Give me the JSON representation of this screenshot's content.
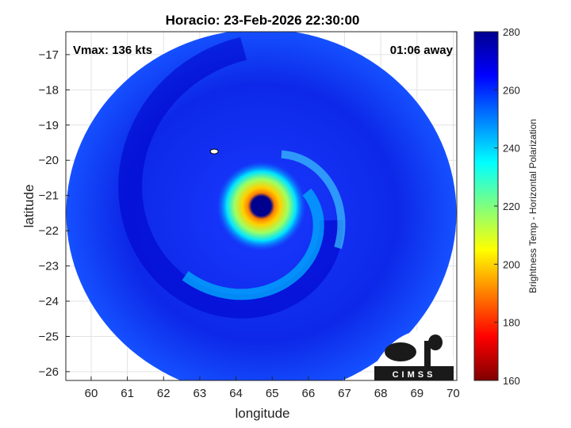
{
  "chart_data": {
    "type": "heatmap",
    "title": "Horacio: 23-Feb-2026 22:30:00",
    "xlabel": "longitude",
    "ylabel": "latitude",
    "xlim": [
      59.3,
      70.1
    ],
    "ylim": [
      -26.25,
      -16.35
    ],
    "xticks": [
      60,
      61,
      62,
      63,
      64,
      65,
      66,
      67,
      68,
      69,
      70
    ],
    "yticks": [
      -17,
      -18,
      -19,
      -20,
      -21,
      -22,
      -23,
      -24,
      -25,
      -26
    ],
    "grid": true,
    "annotations": {
      "vmax": "Vmax: 136 kts",
      "time_away": "01:06 away"
    },
    "storm_center": {
      "lon": 64.7,
      "lat": -21.3
    },
    "swath_center": {
      "lon": 64.7,
      "lat": -21.5
    },
    "colorbar": {
      "label": "Brightness Temp - Horizontal Polarization",
      "range": [
        160,
        280
      ],
      "ticks": [
        280,
        260,
        240,
        220,
        200,
        180,
        160
      ],
      "colormap": "jet",
      "colors": [
        "#7f0000",
        "#ff0000",
        "#ff7f00",
        "#ffff00",
        "#7fff7f",
        "#00ffff",
        "#007fff",
        "#0000ff",
        "#00008f"
      ]
    },
    "logo_text": "CIMSS"
  }
}
